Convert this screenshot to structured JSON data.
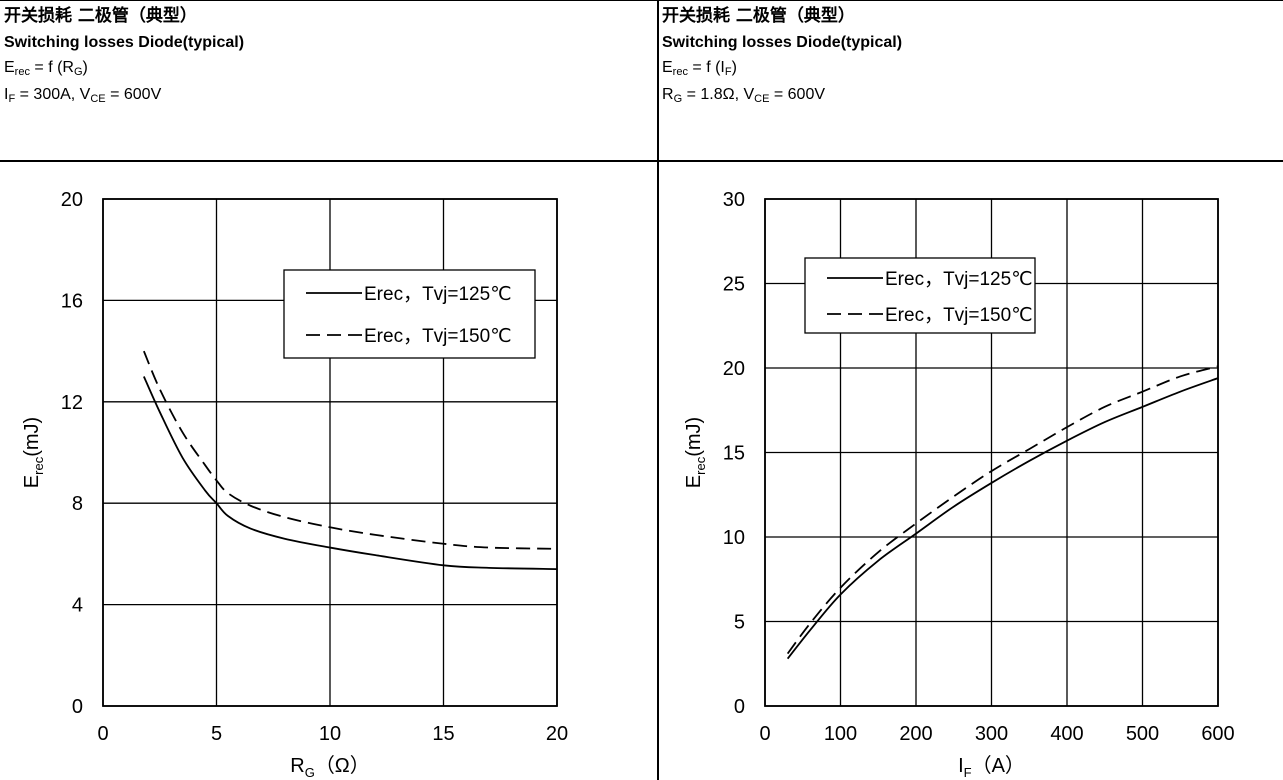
{
  "panels": [
    {
      "title_zh": "开关损耗 二极管（典型）",
      "title_en": "Switching losses Diode(typical)",
      "formula": {
        "main": "E",
        "sub": "rec",
        "rest": " = f (R",
        "sub2": "G",
        "end": ")"
      },
      "conditions": {
        "a": "I",
        "a_sub": "F",
        "a_rest": " = 300A, V",
        "b_sub": "CE",
        "b_rest": " = 600V"
      }
    },
    {
      "title_zh": "开关损耗 二极管（典型）",
      "title_en": "Switching losses Diode(typical)",
      "formula": {
        "main": "E",
        "sub": "rec",
        "rest": " = f (I",
        "sub2": "F",
        "end": ")"
      },
      "conditions": {
        "a": "R",
        "a_sub": "G",
        "a_rest": " = 1.8Ω, V",
        "b_sub": "CE",
        "b_rest": " = 600V"
      }
    }
  ],
  "chart_data": [
    {
      "type": "line",
      "xlabel": "R",
      "xlabel_sub": "G",
      "xlabel_unit": "（Ω）",
      "ylabel": "E",
      "ylabel_sub": "rec",
      "ylabel_unit": "(mJ)",
      "xlim": [
        0,
        20
      ],
      "ylim": [
        0,
        20
      ],
      "xticks": [
        0,
        5,
        10,
        15,
        20
      ],
      "yticks": [
        0,
        4,
        8,
        12,
        16,
        20
      ],
      "grid": true,
      "legend_position": "top-right",
      "series": [
        {
          "name": "Erec，Tvj=125℃",
          "style": "solid",
          "x": [
            1.8,
            2.5,
            3.5,
            4.5,
            5,
            5.5,
            6.5,
            8,
            10,
            12,
            15,
            17,
            20
          ],
          "y": [
            13.0,
            11.6,
            9.8,
            8.5,
            8.0,
            7.5,
            7.0,
            6.6,
            6.25,
            5.95,
            5.55,
            5.45,
            5.4
          ]
        },
        {
          "name": "Erec，Tvj=150℃",
          "style": "dashed",
          "x": [
            1.8,
            2.5,
            3.5,
            4.5,
            5,
            5.5,
            6.5,
            8,
            10,
            12,
            15,
            17,
            20
          ],
          "y": [
            14.0,
            12.5,
            10.8,
            9.5,
            8.9,
            8.4,
            7.9,
            7.45,
            7.05,
            6.75,
            6.4,
            6.25,
            6.2
          ]
        }
      ]
    },
    {
      "type": "line",
      "xlabel": "I",
      "xlabel_sub": "F",
      "xlabel_unit": "（A）",
      "ylabel": "E",
      "ylabel_sub": "rec",
      "ylabel_unit": "(mJ)",
      "xlim": [
        0,
        600
      ],
      "ylim": [
        0,
        30
      ],
      "xticks": [
        0,
        100,
        200,
        300,
        400,
        500,
        600
      ],
      "yticks": [
        0,
        5,
        10,
        15,
        20,
        25,
        30
      ],
      "grid": true,
      "legend_position": "top-center",
      "series": [
        {
          "name": "Erec，Tvj=125℃",
          "style": "solid",
          "x": [
            30,
            60,
            100,
            150,
            200,
            250,
            300,
            350,
            400,
            450,
            500,
            550,
            600
          ],
          "y": [
            2.8,
            4.5,
            6.6,
            8.6,
            10.2,
            11.8,
            13.2,
            14.5,
            15.7,
            16.8,
            17.7,
            18.6,
            19.4
          ]
        },
        {
          "name": "Erec，Tvj=150℃",
          "style": "dashed",
          "x": [
            30,
            60,
            100,
            150,
            200,
            250,
            300,
            350,
            400,
            450,
            500,
            550,
            600
          ],
          "y": [
            3.1,
            4.9,
            7.0,
            9.1,
            10.8,
            12.4,
            13.9,
            15.2,
            16.5,
            17.7,
            18.6,
            19.5,
            20.1
          ]
        }
      ]
    }
  ]
}
